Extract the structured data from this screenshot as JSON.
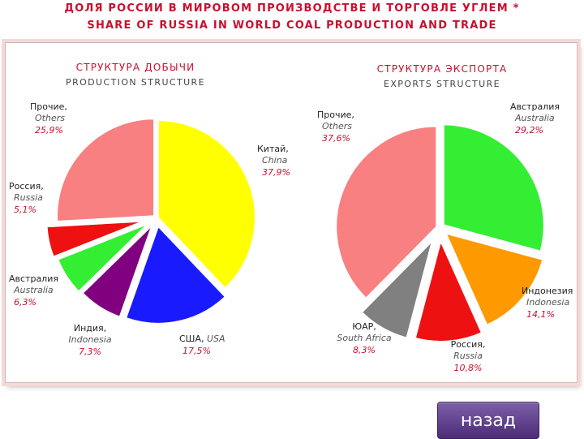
{
  "header": {
    "title_ru": "ДОЛЯ РОССИИ В МИРОВОМ ПРОИЗВОДСТВЕ И ТОРГОВЛЕ УГЛЕМ  *",
    "title_en": "SHARE OF RUSSIA IN WORLD COAL PRODUCTION AND TRADE"
  },
  "chart_data": [
    {
      "type": "pie",
      "title": "СТРУКТУРА ДОБЫЧИ",
      "subtitle": "PRODUCTION STRUCTURE",
      "categories": [
        "Китай, China",
        "США, USA",
        "Индия, Indonesia",
        "Австралия Australia",
        "Россия, Russia",
        "Прочие, Others"
      ],
      "values": [
        37.9,
        17.5,
        7.3,
        6.3,
        5.1,
        25.9
      ],
      "slices": [
        {
          "name_ru": "Китай,",
          "name_en": "China",
          "value": 37.9,
          "value_label": "37,9%",
          "color": "#ffff00"
        },
        {
          "name_ru": "США,",
          "name_en": "USA",
          "value": 17.5,
          "value_label": "17,5%",
          "color": "#1a1aff"
        },
        {
          "name_ru": "Индия,",
          "name_en": "Indonesia",
          "value": 7.3,
          "value_label": "7,3%",
          "color": "#800080"
        },
        {
          "name_ru": "Австралия",
          "name_en": "Australia",
          "value": 6.3,
          "value_label": "6,3%",
          "color": "#33ee33"
        },
        {
          "name_ru": "Россия,",
          "name_en": "Russia",
          "value": 5.1,
          "value_label": "5,1%",
          "color": "#ee1111"
        },
        {
          "name_ru": "Прочие,",
          "name_en": "Others",
          "value": 25.9,
          "value_label": "25,9%",
          "color": "#f88080"
        }
      ]
    },
    {
      "type": "pie",
      "title": "СТРУКТУРА ЭКСПОРТА",
      "subtitle": "EXPORTS STRUCTURE",
      "categories": [
        "Австралия Australia",
        "Индонезия Indonesia",
        "Россия, Russia",
        "ЮАР, South Africa",
        "Прочие, Others"
      ],
      "values": [
        29.2,
        14.1,
        10.8,
        8.3,
        37.6
      ],
      "slices": [
        {
          "name_ru": "Австралия",
          "name_en": "Australia",
          "value": 29.2,
          "value_label": "29,2%",
          "color": "#33ee33"
        },
        {
          "name_ru": "Индонезия",
          "name_en": "Indonesia",
          "value": 14.1,
          "value_label": "14,1%",
          "color": "#ff9900"
        },
        {
          "name_ru": "Россия,",
          "name_en": "Russia",
          "value": 10.8,
          "value_label": "10,8%",
          "color": "#ee1111"
        },
        {
          "name_ru": "ЮАР,",
          "name_en": "South Africa",
          "value": 8.3,
          "value_label": "8,3%",
          "color": "#808080"
        },
        {
          "name_ru": "Прочие,",
          "name_en": "Others",
          "value": 37.6,
          "value_label": "37,6%",
          "color": "#f88080"
        }
      ]
    }
  ],
  "nav": {
    "back_label": "назад"
  },
  "colors": {
    "title": "#c8102e",
    "value_label": "#c8102e",
    "name_en": "#555555",
    "button": "#5b3a8a"
  }
}
